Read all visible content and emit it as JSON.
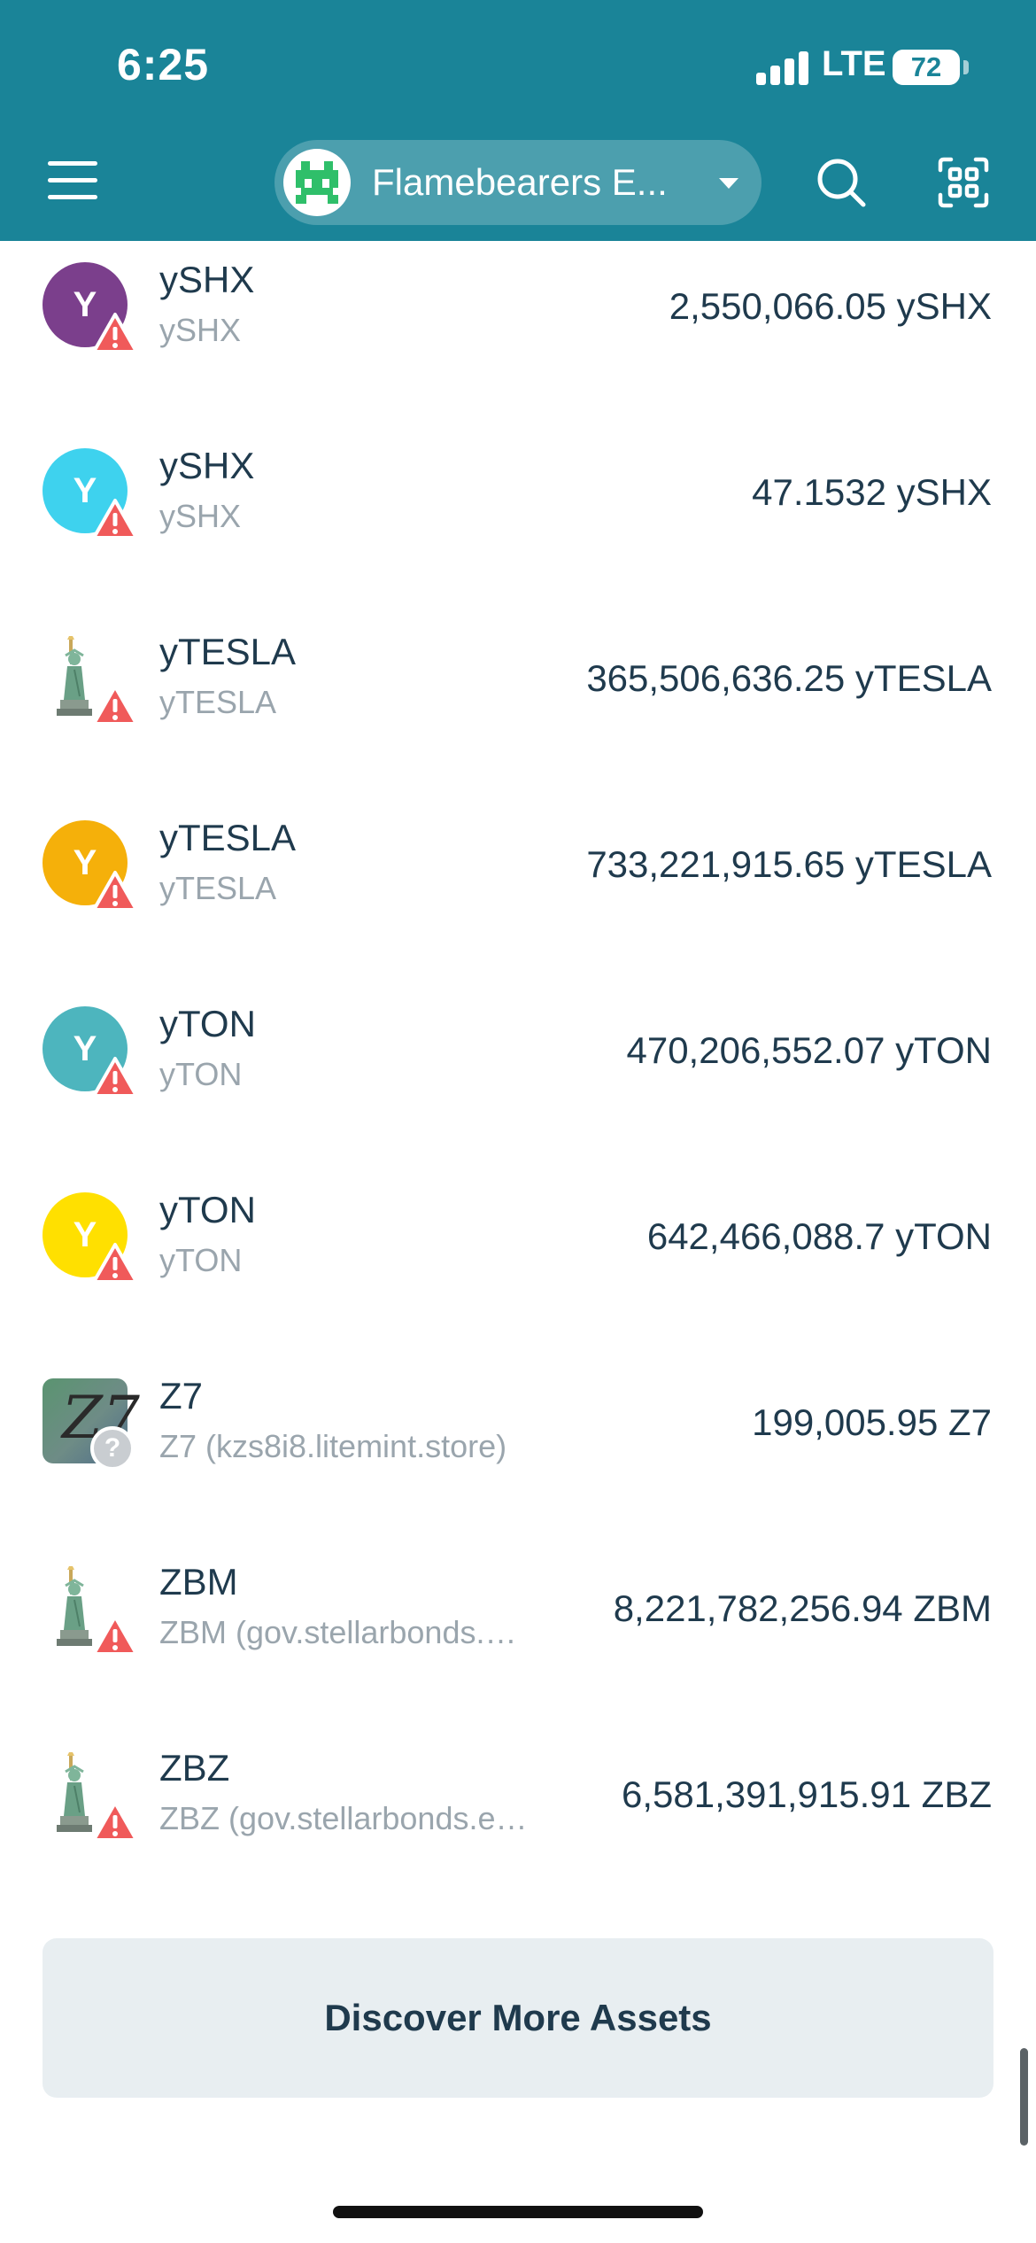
{
  "status_bar": {
    "time": "6:25",
    "network": "LTE",
    "battery": "72"
  },
  "header": {
    "account_name": "Flamebearers E...",
    "menu_icon": "hamburger-menu-icon",
    "search_icon": "search-icon",
    "scan_icon": "qr-scan-icon",
    "background_color": "#1a8498"
  },
  "assets": [
    {
      "code": "ySHX",
      "issuer": "ySHX",
      "balance": "2,550,066.05 ySHX",
      "icon": "Y",
      "icon_color": "#7b3f8c",
      "badge": "warning-icon"
    },
    {
      "code": "ySHX",
      "issuer": "ySHX",
      "balance": "47.1532 ySHX",
      "icon": "Y",
      "icon_color": "#3ed2ee",
      "badge": "warning-icon"
    },
    {
      "code": "yTESLA",
      "issuer": "yTESLA",
      "balance": "365,506,636.25 yTESLA",
      "icon": "statue-of-liberty-icon",
      "icon_color": "#6aa086",
      "badge": "warning-icon"
    },
    {
      "code": "yTESLA",
      "issuer": "yTESLA",
      "balance": "733,221,915.65 yTESLA",
      "icon": "Y",
      "icon_color": "#f5b00a",
      "badge": "warning-icon"
    },
    {
      "code": "yTON",
      "issuer": "yTON",
      "balance": "470,206,552.07 yTON",
      "icon": "Y",
      "icon_color": "#4db5be",
      "badge": "warning-icon"
    },
    {
      "code": "yTON",
      "issuer": "yTON",
      "balance": "642,466,088.7 yTON",
      "icon": "Y",
      "icon_color": "#ffe000",
      "badge": "warning-icon"
    },
    {
      "code": "Z7",
      "issuer": "Z7 (kzs8i8.litemint.store)",
      "balance": "199,005.95 Z7",
      "icon": "Z7",
      "icon_color": "#5a9470",
      "badge": "question-icon"
    },
    {
      "code": "ZBM",
      "issuer": "ZBM (gov.stellarbonds.…",
      "balance": "8,221,782,256.94 ZBM",
      "icon": "statue-of-liberty-icon",
      "icon_color": "#6aa086",
      "badge": "warning-icon"
    },
    {
      "code": "ZBZ",
      "issuer": "ZBZ (gov.stellarbonds.e…",
      "balance": "6,581,391,915.91 ZBZ",
      "icon": "statue-of-liberty-icon",
      "icon_color": "#6aa086",
      "badge": "warning-icon"
    }
  ],
  "discover_button": {
    "label": "Discover More Assets"
  },
  "colors": {
    "warning": "#f05a5a",
    "text_primary": "#1f3a4d",
    "text_secondary": "#9aa5ad"
  }
}
